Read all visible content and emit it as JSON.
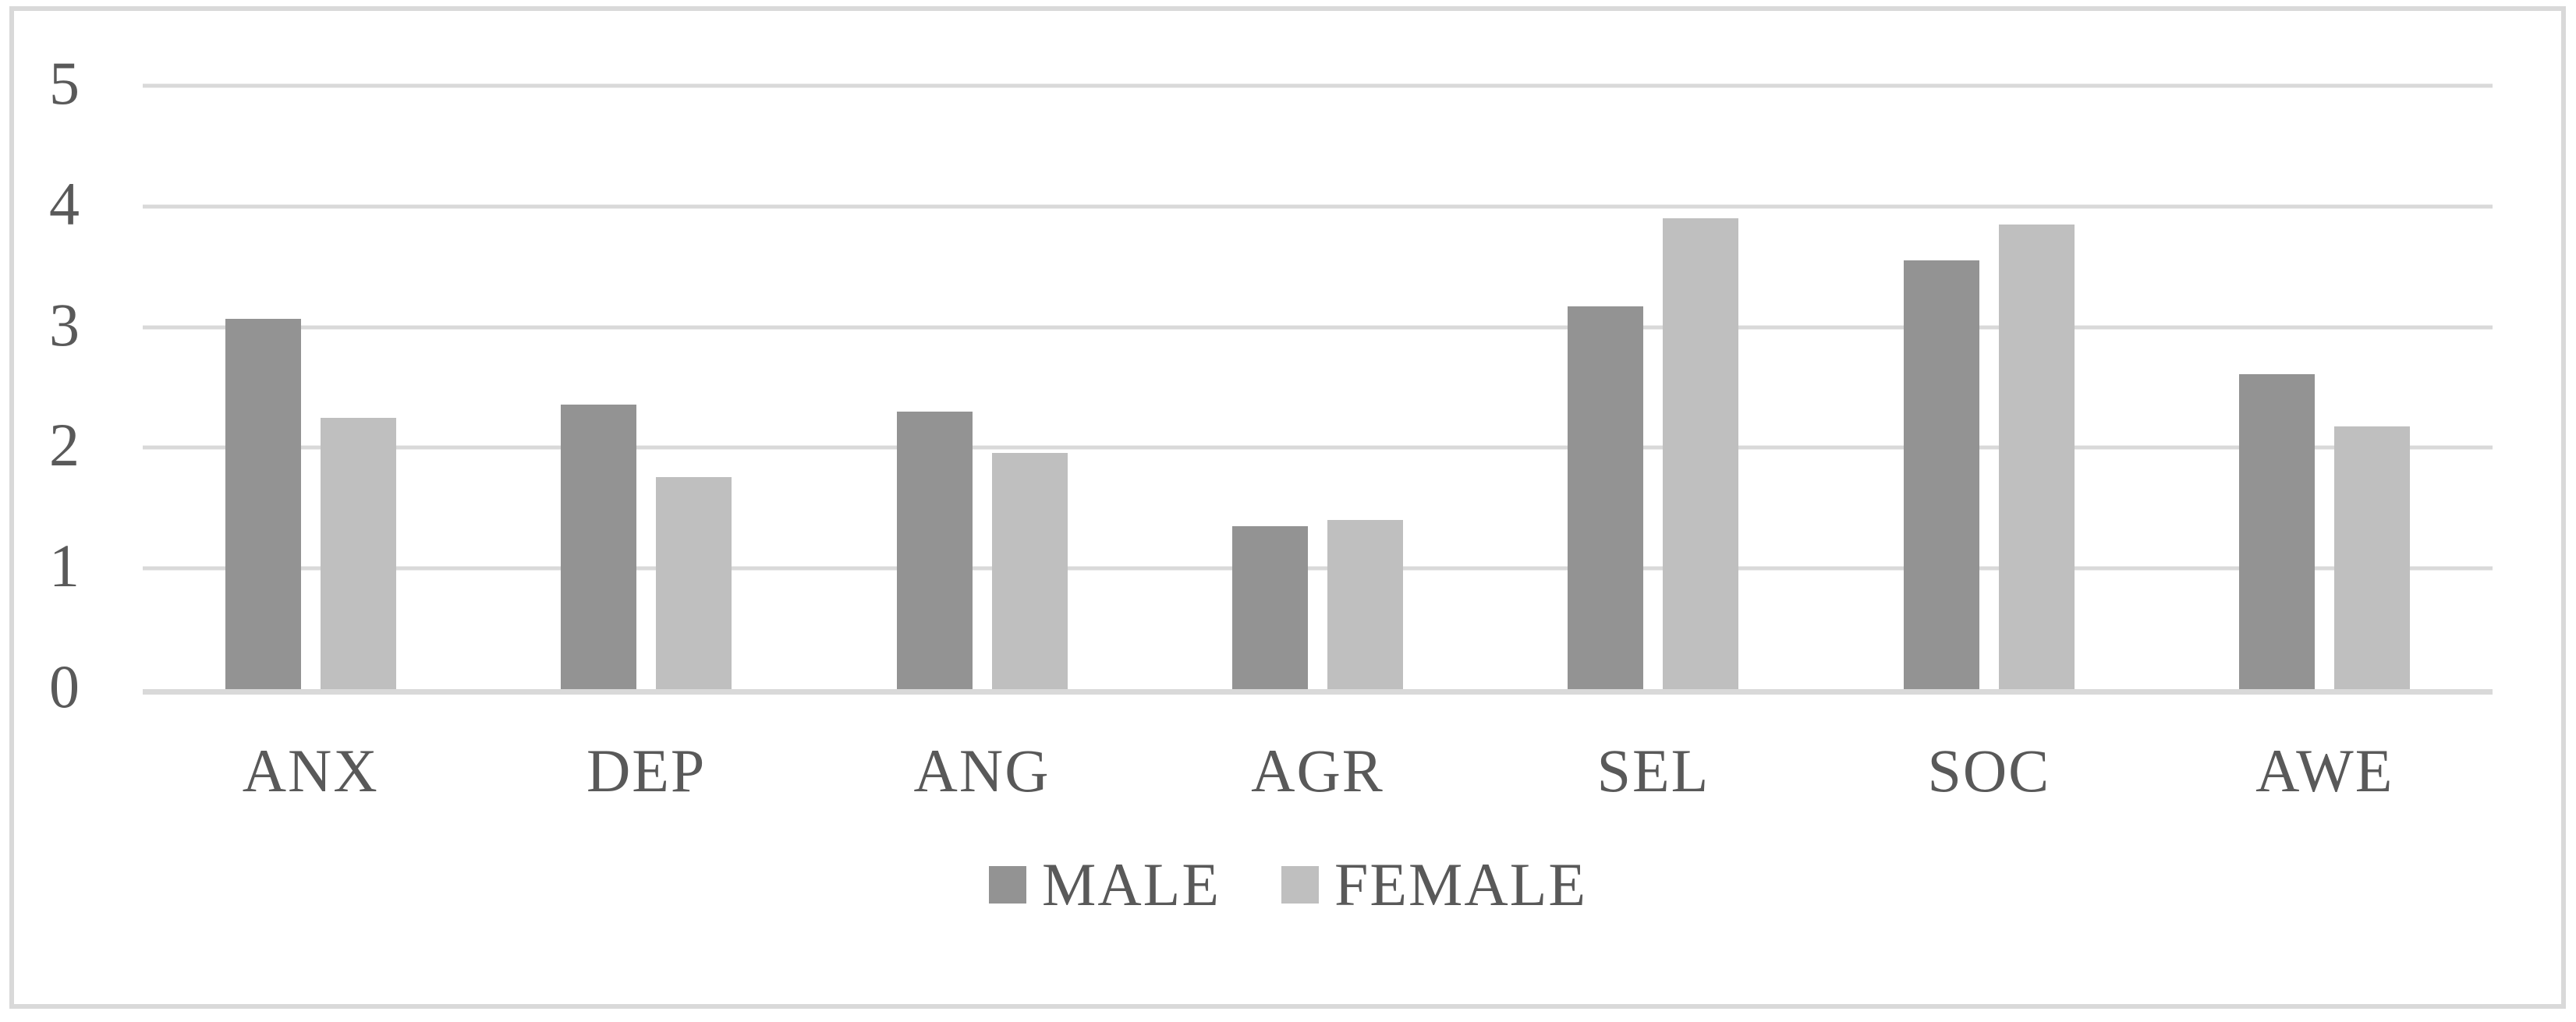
{
  "figure": {
    "background": "#FFFFFF",
    "frame_border_color": "#D9D9D9",
    "text_color": "#595959",
    "gridline_color": "#D9D9D9"
  },
  "chart_data": {
    "type": "bar",
    "title": "",
    "xlabel": "",
    "ylabel": "",
    "categories": [
      "ANX",
      "DEP",
      "ANG",
      "AGR",
      "SEL",
      "SOC",
      "AWE"
    ],
    "series": [
      {
        "name": "MALE",
        "color": "#939393",
        "values": [
          3.07,
          2.36,
          2.3,
          1.35,
          3.17,
          3.55,
          2.61
        ]
      },
      {
        "name": "FEMALE",
        "color": "#BFBFBF",
        "values": [
          2.25,
          1.76,
          1.96,
          1.4,
          3.9,
          3.85,
          2.18
        ]
      }
    ],
    "ylim": [
      0,
      5
    ],
    "yticks": [
      0,
      1,
      2,
      3,
      4,
      5
    ],
    "grid": true,
    "legend_position": "bottom"
  }
}
